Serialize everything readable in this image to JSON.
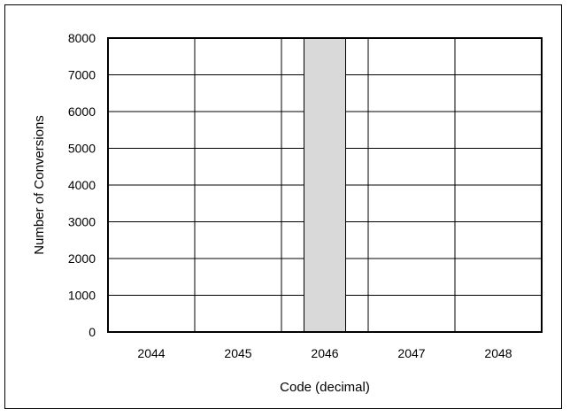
{
  "chart_data": {
    "type": "bar",
    "categories": [
      "2044",
      "2045",
      "2046",
      "2047",
      "2048"
    ],
    "values": [
      0,
      0,
      8000,
      0,
      0
    ],
    "xlabel": "Code (decimal)",
    "ylabel": "Number of Conversions",
    "ylim": [
      0,
      8000
    ],
    "yticks": [
      0,
      1000,
      2000,
      3000,
      4000,
      5000,
      6000,
      7000,
      8000
    ],
    "grid": true,
    "legend": "none",
    "bar_color": "#d9d9d9"
  }
}
